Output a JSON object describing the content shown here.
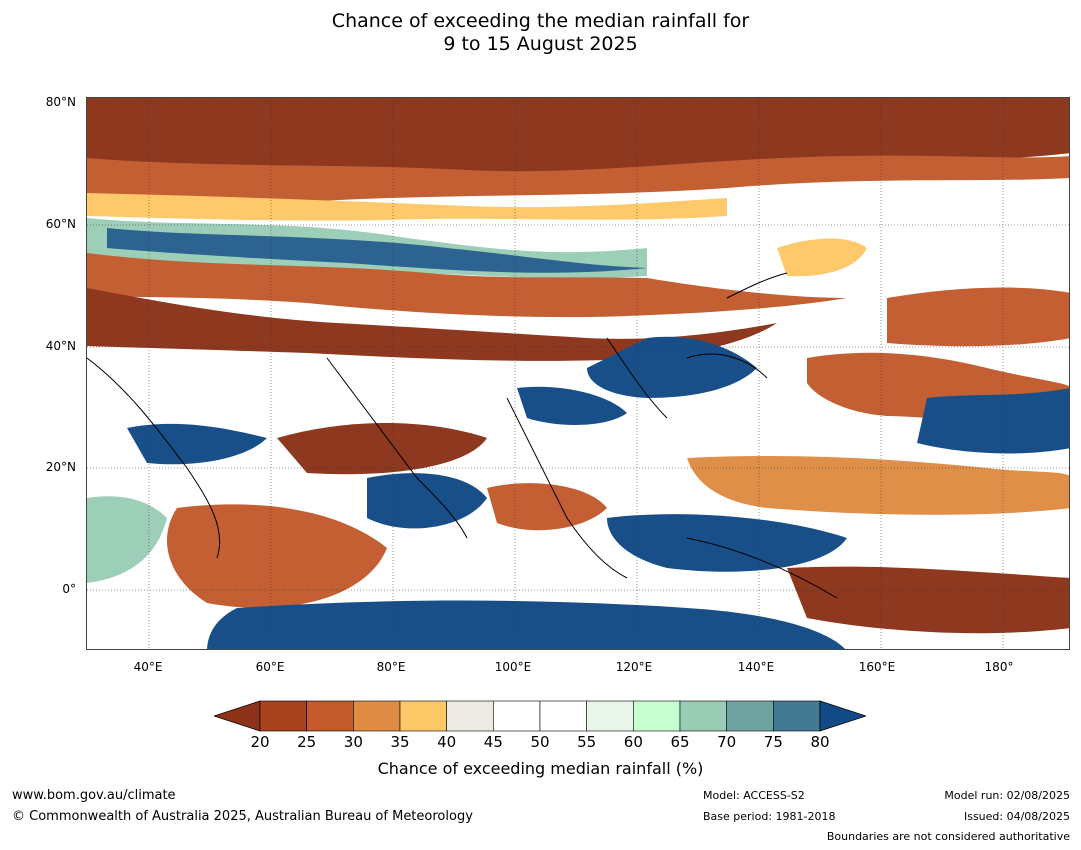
{
  "title_line1": "Chance of exceeding the median rainfall for",
  "title_line2": "9 to 15 August 2025",
  "lat_labels": [
    "80°N",
    "60°N",
    "40°N",
    "20°N",
    "0°"
  ],
  "lon_labels": [
    "40°E",
    "60°E",
    "80°E",
    "100°E",
    "120°E",
    "140°E",
    "160°E",
    "180°"
  ],
  "colorbar": {
    "title": "Chance of exceeding median rainfall (%)",
    "ticks": [
      "20",
      "25",
      "30",
      "35",
      "40",
      "45",
      "50",
      "55",
      "60",
      "65",
      "70",
      "75",
      "80"
    ],
    "colors": [
      "#8b3219",
      "#a8431f",
      "#c25a2c",
      "#de8c43",
      "#fdc867",
      "#edeae4",
      "#ffffff",
      "#ffffff",
      "#e9f5e8",
      "#c8ffd0",
      "#99cdb6",
      "#6ea3a2",
      "#437993",
      "#124a86"
    ],
    "under_color": "#8b3219",
    "over_color": "#124a86"
  },
  "footer": {
    "website": "www.bom.gov.au/climate",
    "copyright": "© Commonwealth of Australia 2025, Australian Bureau of Meteorology",
    "model": "Model: ACCESS-S2",
    "base_period": "Base period: 1981-2018",
    "model_run": "Model run: 02/08/2025",
    "issued": "Issued: 04/08/2025",
    "boundaries": "Boundaries are not considered authoritative"
  }
}
